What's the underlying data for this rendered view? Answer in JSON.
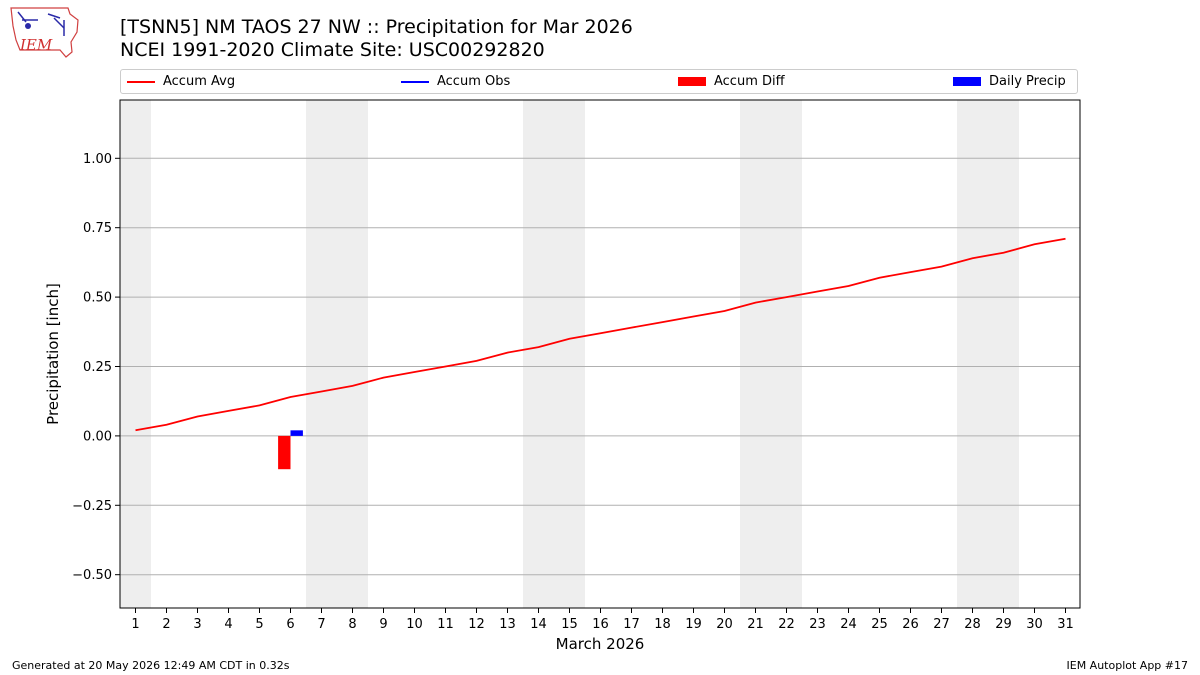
{
  "title": {
    "line1": "[TSNN5] NM TAOS 27 NW :: Precipitation for Mar 2026",
    "line2": "NCEI 1991-2020 Climate Site: USC00292820"
  },
  "logo": {
    "text": "IEM"
  },
  "footer": {
    "left": "Generated at 20 May 2026 12:49 AM CDT in 0.32s",
    "right": "IEM Autoplot App #17"
  },
  "legend": {
    "items": [
      {
        "label": "Accum Avg",
        "color": "#ff0000",
        "kind": "line"
      },
      {
        "label": "Accum Obs",
        "color": "#0000ff",
        "kind": "line"
      },
      {
        "label": "Accum Diff",
        "color": "#ff0000",
        "kind": "box"
      },
      {
        "label": "Daily Precip",
        "color": "#0000ff",
        "kind": "box"
      }
    ]
  },
  "chart_data": {
    "type": "line",
    "xlabel": "March 2026",
    "ylabel": "Precipitation [inch]",
    "xlim": [
      1,
      31
    ],
    "ylim": [
      -0.62,
      1.21
    ],
    "yticks": [
      -0.5,
      -0.25,
      0.0,
      0.25,
      0.5,
      0.75,
      1.0
    ],
    "ytick_labels": [
      "−0.50",
      "−0.25",
      "0.00",
      "0.25",
      "0.50",
      "0.75",
      "1.00"
    ],
    "xticks": [
      1,
      2,
      3,
      4,
      5,
      6,
      7,
      8,
      9,
      10,
      11,
      12,
      13,
      14,
      15,
      16,
      17,
      18,
      19,
      20,
      21,
      22,
      23,
      24,
      25,
      26,
      27,
      28,
      29,
      30,
      31
    ],
    "grid": "horizontal",
    "weekend_shading": [
      [
        1,
        1
      ],
      [
        7,
        8
      ],
      [
        14,
        15
      ],
      [
        21,
        22
      ],
      [
        28,
        29
      ]
    ],
    "series": [
      {
        "name": "Accum Avg",
        "type": "line",
        "color": "#ff0000",
        "x": [
          1,
          2,
          3,
          4,
          5,
          6,
          7,
          8,
          9,
          10,
          11,
          12,
          13,
          14,
          15,
          16,
          17,
          18,
          19,
          20,
          21,
          22,
          23,
          24,
          25,
          26,
          27,
          28,
          29,
          30,
          31
        ],
        "values": [
          0.02,
          0.04,
          0.07,
          0.09,
          0.11,
          0.14,
          0.16,
          0.18,
          0.21,
          0.23,
          0.25,
          0.27,
          0.3,
          0.32,
          0.35,
          0.37,
          0.39,
          0.41,
          0.43,
          0.45,
          0.48,
          0.5,
          0.52,
          0.54,
          0.57,
          0.59,
          0.61,
          0.64,
          0.66,
          0.69,
          0.71
        ]
      },
      {
        "name": "Accum Diff",
        "type": "bar",
        "color": "#ff0000",
        "x": [
          6
        ],
        "values": [
          -0.12
        ]
      },
      {
        "name": "Daily Precip",
        "type": "bar",
        "color": "#0000ff",
        "x": [
          6
        ],
        "values": [
          0.02
        ]
      }
    ]
  }
}
